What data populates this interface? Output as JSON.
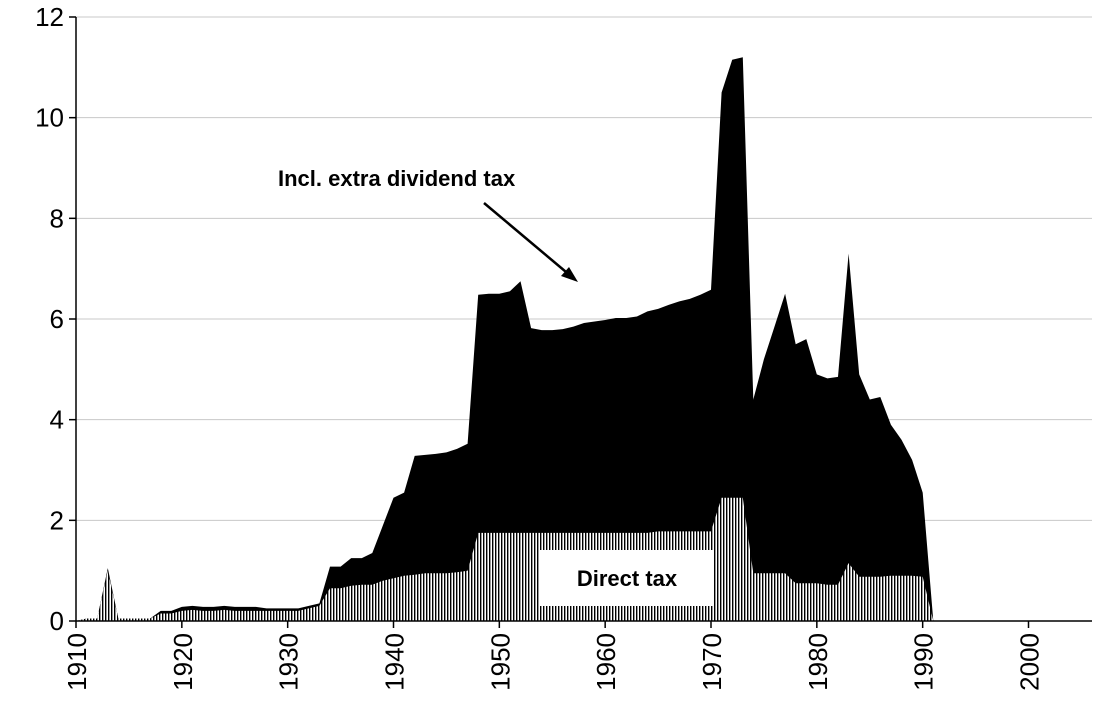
{
  "chart_data": {
    "type": "area",
    "title": "",
    "xlabel": "",
    "ylabel": "",
    "xlim": [
      1910,
      2006
    ],
    "ylim": [
      0,
      12
    ],
    "x_ticks": [
      "1910",
      "1920",
      "1930",
      "1940",
      "1950",
      "1960",
      "1970",
      "1980",
      "1990",
      "2000"
    ],
    "y_ticks": [
      "0",
      "2",
      "4",
      "6",
      "8",
      "10",
      "12"
    ],
    "grid": "horizontal",
    "annotations": [
      {
        "text": "Incl. extra dividend tax",
        "arrow": true
      },
      {
        "text": "Direct tax",
        "arrow": false
      }
    ],
    "series": [
      {
        "style": "black-fill",
        "x": [
          1910,
          1911,
          1912,
          1913,
          1914,
          1915,
          1916,
          1917,
          1918,
          1919,
          1920,
          1921,
          1922,
          1923,
          1924,
          1925,
          1926,
          1927,
          1928,
          1929,
          1930,
          1931,
          1932,
          1933,
          1934,
          1935,
          1936,
          1937,
          1938,
          1939,
          1940,
          1941,
          1942,
          1943,
          1944,
          1945,
          1946,
          1947,
          1948,
          1949,
          1950,
          1951,
          1952,
          1953,
          1954,
          1955,
          1956,
          1957,
          1958,
          1959,
          1960,
          1961,
          1962,
          1963,
          1964,
          1965,
          1966,
          1967,
          1968,
          1969,
          1970,
          1971,
          1972,
          1973,
          1974,
          1975,
          1976,
          1977,
          1978,
          1979,
          1980,
          1981,
          1982,
          1983,
          1984,
          1985,
          1986,
          1987,
          1988,
          1989,
          1990,
          1991
        ],
        "values": [
          0,
          0.05,
          0.05,
          1.05,
          0.05,
          0.05,
          0.05,
          0.05,
          0.2,
          0.2,
          0.28,
          0.3,
          0.28,
          0.28,
          0.3,
          0.28,
          0.28,
          0.28,
          0.25,
          0.25,
          0.25,
          0.25,
          0.3,
          0.35,
          1.08,
          1.08,
          1.25,
          1.25,
          1.35,
          1.9,
          2.45,
          2.55,
          3.28,
          3.3,
          3.32,
          3.35,
          3.42,
          3.52,
          6.48,
          6.5,
          6.5,
          6.55,
          6.75,
          5.82,
          5.78,
          5.78,
          5.8,
          5.85,
          5.92,
          5.95,
          5.98,
          6.02,
          6.02,
          6.05,
          6.15,
          6.2,
          6.28,
          6.35,
          6.4,
          6.48,
          6.58,
          10.5,
          11.15,
          11.2,
          4.4,
          5.2,
          5.85,
          6.5,
          5.5,
          5.6,
          4.9,
          4.82,
          4.85,
          7.3,
          4.9,
          4.4,
          4.45,
          3.9,
          3.6,
          3.2,
          2.55,
          0
        ]
      },
      {
        "style": "striped-fill",
        "x": [
          1910,
          1911,
          1912,
          1913,
          1914,
          1915,
          1916,
          1917,
          1918,
          1919,
          1920,
          1921,
          1922,
          1923,
          1924,
          1925,
          1926,
          1927,
          1928,
          1929,
          1930,
          1931,
          1932,
          1933,
          1934,
          1935,
          1936,
          1937,
          1938,
          1939,
          1940,
          1941,
          1942,
          1943,
          1944,
          1945,
          1946,
          1947,
          1948,
          1949,
          1950,
          1951,
          1952,
          1953,
          1954,
          1955,
          1956,
          1957,
          1958,
          1959,
          1960,
          1961,
          1962,
          1963,
          1964,
          1965,
          1966,
          1967,
          1968,
          1969,
          1970,
          1971,
          1972,
          1973,
          1974,
          1975,
          1976,
          1977,
          1978,
          1979,
          1980,
          1981,
          1982,
          1983,
          1984,
          1985,
          1986,
          1987,
          1988,
          1989,
          1990,
          1991
        ],
        "values": [
          0,
          0.05,
          0.05,
          1.0,
          0.05,
          0.05,
          0.05,
          0.05,
          0.15,
          0.15,
          0.2,
          0.22,
          0.2,
          0.2,
          0.22,
          0.2,
          0.2,
          0.2,
          0.2,
          0.2,
          0.2,
          0.2,
          0.25,
          0.3,
          0.65,
          0.65,
          0.7,
          0.72,
          0.72,
          0.8,
          0.85,
          0.9,
          0.92,
          0.95,
          0.95,
          0.95,
          0.97,
          1.0,
          1.75,
          1.75,
          1.75,
          1.75,
          1.75,
          1.75,
          1.75,
          1.75,
          1.75,
          1.75,
          1.75,
          1.75,
          1.75,
          1.75,
          1.75,
          1.75,
          1.75,
          1.78,
          1.78,
          1.78,
          1.78,
          1.78,
          1.78,
          2.45,
          2.45,
          2.45,
          0.95,
          0.95,
          0.95,
          0.95,
          0.75,
          0.75,
          0.75,
          0.72,
          0.72,
          1.15,
          0.88,
          0.88,
          0.88,
          0.9,
          0.9,
          0.9,
          0.88,
          0
        ]
      }
    ]
  }
}
